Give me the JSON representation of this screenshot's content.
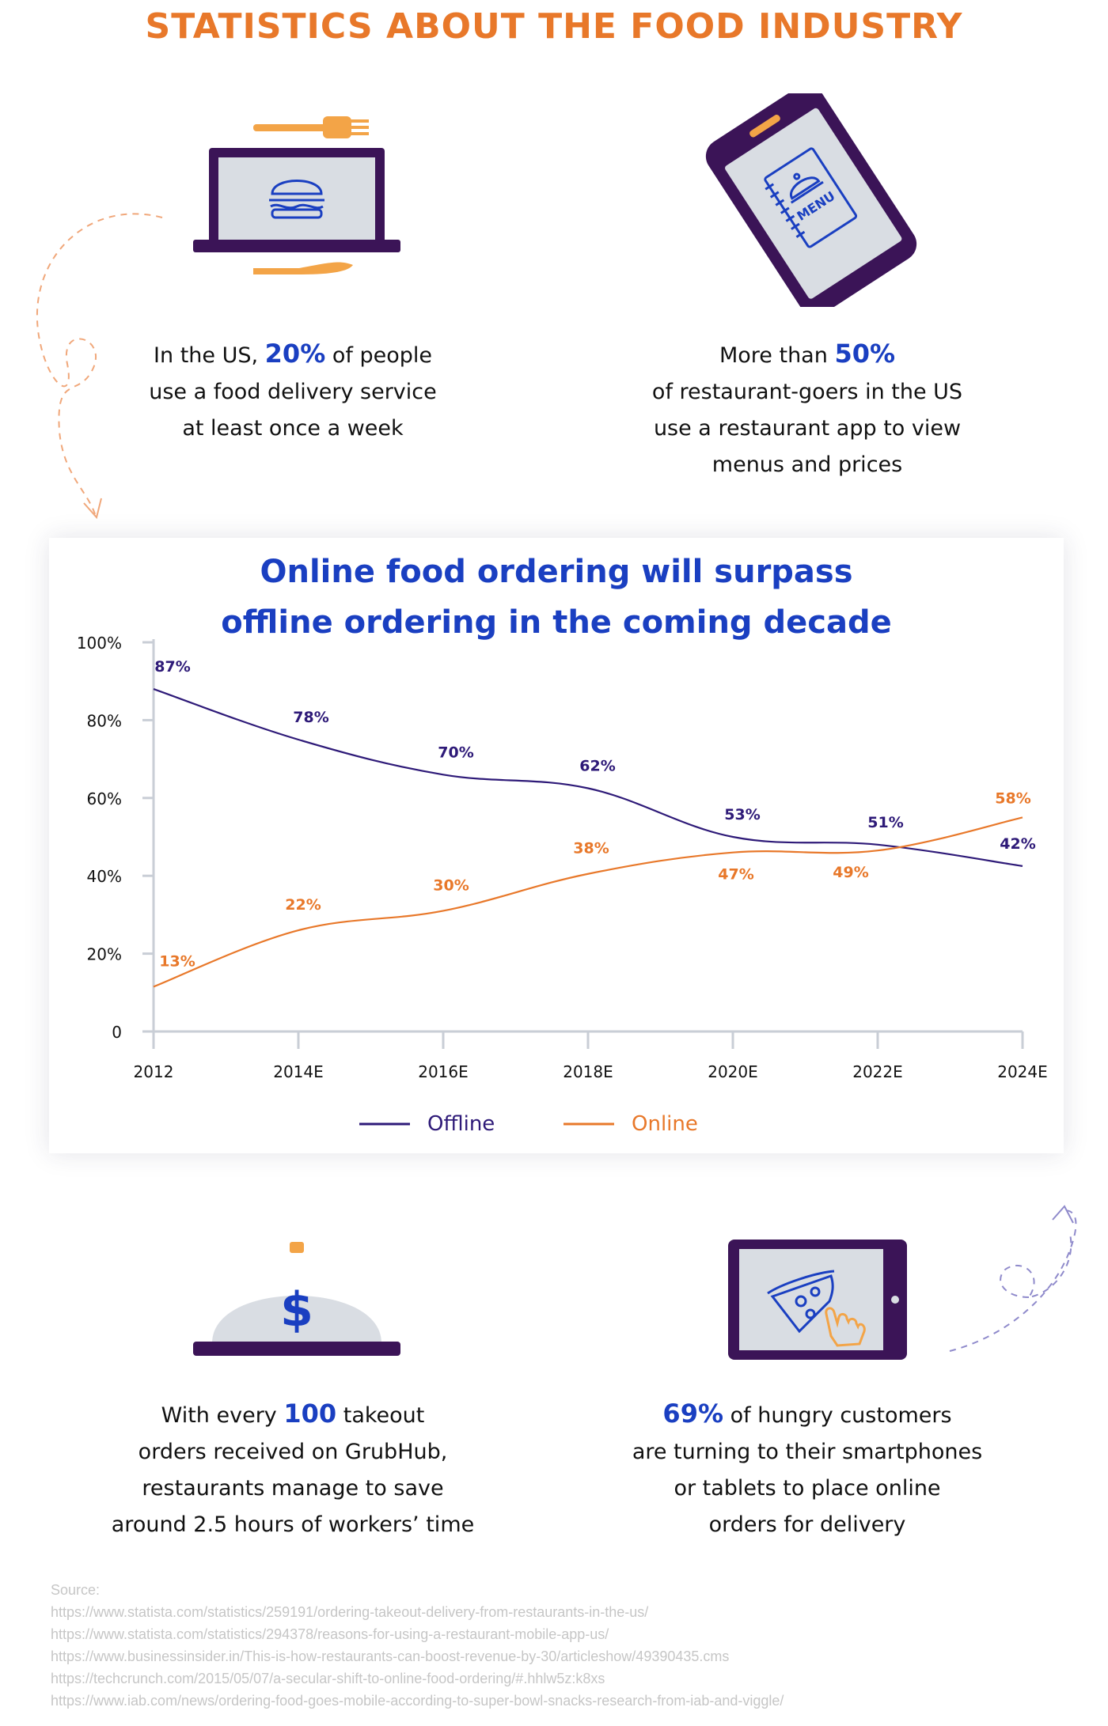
{
  "title": "STATISTICS ABOUT THE FOOD INDUSTRY",
  "stats": {
    "delivery": {
      "pre": "In the US, ",
      "highlight": "20%",
      "post": " of people",
      "line2": "use a food delivery service",
      "line3": "at least once a week"
    },
    "app": {
      "pre": "More than ",
      "highlight": "50%",
      "line2": "of restaurant-goers in the US",
      "line3": "use a restaurant app to view",
      "line4": "menus and prices"
    },
    "grubhub": {
      "pre": "With every ",
      "highlight": "100",
      "post": " takeout",
      "line2": "orders received on GrubHub,",
      "line3": "restaurants manage to save",
      "line4": "around 2.5 hours of workers’ time"
    },
    "smartphones": {
      "highlight": "69%",
      "post": " of hungry customers",
      "line2": "are turning to their smartphones",
      "line3": "or tablets to place online",
      "line4": "orders for delivery"
    }
  },
  "icons": {
    "laptop": "laptop-burger-icon",
    "fork": "fork-icon",
    "knife": "knife-icon",
    "phone": "phone-menu-icon",
    "cloche": "cloche-dollar-icon",
    "tablet": "tablet-pizza-icon"
  },
  "menu_label": "MENU",
  "dollar_sign": "$",
  "colors": {
    "offline": "#2e1a78",
    "online": "#e8782a",
    "accent": "#1a3fc1",
    "title": "#e8782a",
    "device": "#3b1457"
  },
  "chart_data": {
    "type": "line",
    "title_line1": "Online food ordering will surpass",
    "title_line2": "offline ordering in the coming decade",
    "categories": [
      "2012",
      "2014E",
      "2016E",
      "2018E",
      "2020E",
      "2022E",
      "2024E"
    ],
    "yticks": [
      "0",
      "20%",
      "40%",
      "60%",
      "80%",
      "100%"
    ],
    "ylim": [
      0,
      100
    ],
    "series": [
      {
        "name": "Offline",
        "color": "#2e1a78",
        "values": [
          87,
          78,
          70,
          62,
          53,
          51,
          42
        ],
        "line": [
          88,
          75,
          66,
          62.5,
          50,
          48,
          42.5
        ]
      },
      {
        "name": "Online",
        "color": "#e8782a",
        "values": [
          13,
          22,
          30,
          38,
          47,
          49,
          58
        ],
        "line": [
          11.5,
          26,
          31,
          40.5,
          46,
          46.5,
          55
        ]
      }
    ],
    "legend_position": "bottom-center",
    "grid": false
  },
  "sources": {
    "label": "Source:",
    "urls": [
      "https://www.statista.com/statistics/259191/ordering-takeout-delivery-from-restaurants-in-the-us/",
      "https://www.statista.com/statistics/294378/reasons-for-using-a-restaurant-mobile-app-us/",
      "https://www.businessinsider.in/This-is-how-restaurants-can-boost-revenue-by-30/articleshow/49390435.cms",
      "https://techcrunch.com/2015/05/07/a-secular-shift-to-online-food-ordering/#.hhlw5z:k8xs",
      "https://www.iab.com/news/ordering-food-goes-mobile-according-to-super-bowl-snacks-research-from-iab-and-viggle/"
    ]
  }
}
